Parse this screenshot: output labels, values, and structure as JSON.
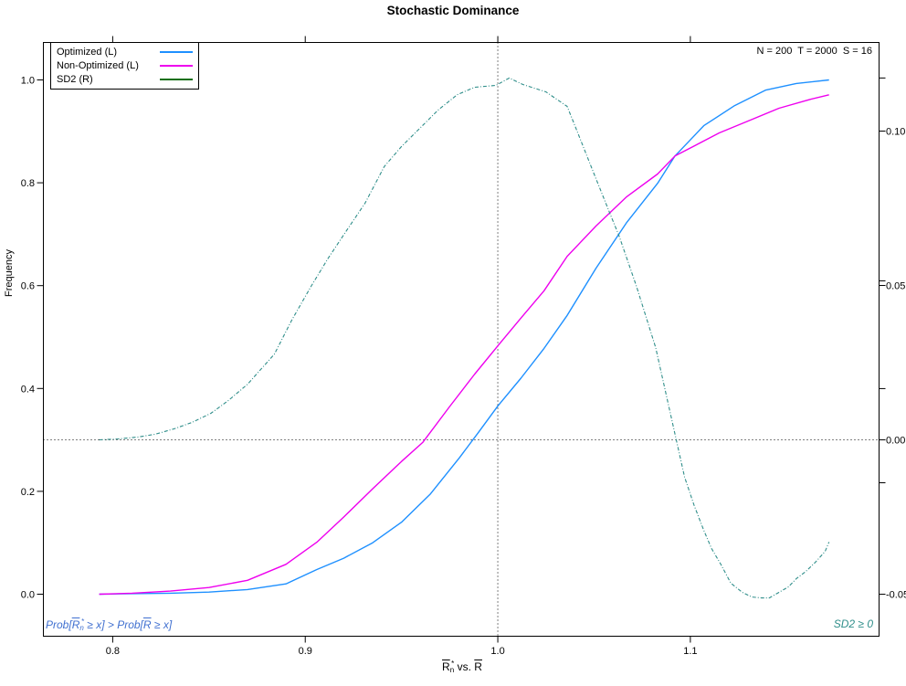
{
  "title": "Stochastic Dominance",
  "params_note": "N = 200  T = 2000  S = 16",
  "legend": {
    "items": [
      {
        "label": "Optimized (L)",
        "color": "#1e90ff"
      },
      {
        "label": "Non-Optimized (L)",
        "color": "#ee00ee"
      },
      {
        "label": "SD2 (R)",
        "color": "#0e6f0e"
      }
    ]
  },
  "axes": {
    "x": {
      "tick_values": [
        0.8,
        0.9,
        1.0,
        1.1
      ],
      "tick_labels": [
        "0.8",
        "0.9",
        "1.0",
        "1.1"
      ],
      "title_parts": [
        {
          "t": "R",
          "style": "ov"
        },
        {
          "t": "n",
          "style": "sb"
        },
        {
          "t": "*",
          "style": "sp"
        },
        {
          "t": " vs. "
        },
        {
          "t": "R",
          "style": "ov"
        }
      ]
    },
    "left": {
      "title": "Frequency",
      "tick_values": [
        0.0,
        0.2,
        0.4,
        0.6,
        0.8,
        1.0
      ],
      "tick_labels": [
        "0.0",
        "0.2",
        "0.4",
        "0.6",
        "0.8",
        "1.0"
      ]
    },
    "right": {
      "major_ticks": [
        {
          "value": 0.1,
          "label": "0.10"
        },
        {
          "value": 0.05,
          "label": "0.05"
        },
        {
          "value": 0.0,
          "label": "0.00"
        },
        {
          "value": -0.05,
          "label": "-0.05"
        }
      ],
      "minor_tick_values": [
        0.1172,
        0.0515,
        0.0166,
        -0.0139
      ]
    }
  },
  "annotations": {
    "bottom_left_parts": [
      {
        "t": "Prob["
      },
      {
        "t": "R",
        "style": "ov"
      },
      {
        "t": "n",
        "style": "sb"
      },
      {
        "t": "*",
        "style": "sp"
      },
      {
        "t": " ≥ x] > Prob["
      },
      {
        "t": "R",
        "style": "ov"
      },
      {
        "t": " ≥ x]"
      }
    ],
    "bottom_right": "SD2 ≥ 0"
  },
  "chart_data": {
    "type": "line",
    "title": "Stochastic Dominance",
    "xlabel": "R̄ₙ* vs. R̄",
    "ylabel_left": "Frequency",
    "x_range": [
      0.764,
      1.198
    ],
    "left_axis_range": [
      -0.0817,
      1.0728
    ],
    "right_axis_range": [
      -0.0636,
      0.1287
    ],
    "grid": false,
    "legend_position": "top-left",
    "reference_lines": [
      {
        "orientation": "vertical",
        "axis": "x",
        "value": 1.0,
        "style": "dotted"
      },
      {
        "orientation": "horizontal",
        "axis": "right",
        "value": 0.0,
        "style": "dotted"
      }
    ],
    "series": [
      {
        "name": "Optimized (L)",
        "axis": "left",
        "color": "#1e90ff",
        "width": 1.4,
        "dash": "",
        "points": [
          [
            0.793,
            0.0
          ],
          [
            0.81,
            0.001
          ],
          [
            0.83,
            0.002
          ],
          [
            0.85,
            0.004
          ],
          [
            0.87,
            0.009
          ],
          [
            0.89,
            0.02
          ],
          [
            0.906,
            0.048
          ],
          [
            0.92,
            0.07
          ],
          [
            0.935,
            0.1
          ],
          [
            0.95,
            0.14
          ],
          [
            0.965,
            0.195
          ],
          [
            0.98,
            0.265
          ],
          [
            0.99,
            0.315
          ],
          [
            1.0,
            0.366
          ],
          [
            1.012,
            0.42
          ],
          [
            1.024,
            0.478
          ],
          [
            1.036,
            0.542
          ],
          [
            1.051,
            0.634
          ],
          [
            1.067,
            0.723
          ],
          [
            1.083,
            0.799
          ],
          [
            1.092,
            0.852
          ],
          [
            1.107,
            0.911
          ],
          [
            1.123,
            0.95
          ],
          [
            1.139,
            0.98
          ],
          [
            1.155,
            0.993
          ],
          [
            1.172,
            1.0
          ]
        ]
      },
      {
        "name": "Non-Optimized (L)",
        "axis": "left",
        "color": "#ee00ee",
        "width": 1.4,
        "dash": "",
        "points": [
          [
            0.793,
            0.0
          ],
          [
            0.81,
            0.002
          ],
          [
            0.83,
            0.006
          ],
          [
            0.85,
            0.013
          ],
          [
            0.87,
            0.027
          ],
          [
            0.89,
            0.058
          ],
          [
            0.906,
            0.101
          ],
          [
            0.92,
            0.15
          ],
          [
            0.935,
            0.205
          ],
          [
            0.95,
            0.258
          ],
          [
            0.961,
            0.295
          ],
          [
            0.975,
            0.365
          ],
          [
            0.988,
            0.428
          ],
          [
            1.0,
            0.483
          ],
          [
            1.012,
            0.537
          ],
          [
            1.024,
            0.59
          ],
          [
            1.036,
            0.657
          ],
          [
            1.051,
            0.716
          ],
          [
            1.067,
            0.773
          ],
          [
            1.083,
            0.817
          ],
          [
            1.092,
            0.852
          ],
          [
            1.115,
            0.897
          ],
          [
            1.13,
            0.92
          ],
          [
            1.146,
            0.945
          ],
          [
            1.162,
            0.962
          ],
          [
            1.172,
            0.971
          ]
        ]
      },
      {
        "name": "SD2 (R)",
        "axis": "right",
        "color": "#2f8e8a",
        "width": 1.1,
        "dash": "4 2 1 2",
        "points": [
          [
            0.793,
            0.0
          ],
          [
            0.803,
            0.0003
          ],
          [
            0.813,
            0.0009
          ],
          [
            0.822,
            0.0018
          ],
          [
            0.832,
            0.0036
          ],
          [
            0.841,
            0.0056
          ],
          [
            0.851,
            0.0086
          ],
          [
            0.86,
            0.0127
          ],
          [
            0.87,
            0.018
          ],
          [
            0.884,
            0.0278
          ],
          [
            0.893,
            0.0388
          ],
          [
            0.903,
            0.0497
          ],
          [
            0.912,
            0.0589
          ],
          [
            0.922,
            0.0683
          ],
          [
            0.931,
            0.0766
          ],
          [
            0.941,
            0.0885
          ],
          [
            0.95,
            0.095
          ],
          [
            0.969,
            0.1068
          ],
          [
            0.979,
            0.1118
          ],
          [
            0.988,
            0.1142
          ],
          [
            0.999,
            0.1148
          ],
          [
            1.006,
            0.1172
          ],
          [
            1.013,
            0.1151
          ],
          [
            1.025,
            0.1127
          ],
          [
            1.036,
            0.108
          ],
          [
            1.04,
            0.1018
          ],
          [
            1.05,
            0.0861
          ],
          [
            1.058,
            0.0737
          ],
          [
            1.063,
            0.066
          ],
          [
            1.072,
            0.0497
          ],
          [
            1.082,
            0.0299
          ],
          [
            1.097,
            -0.0121
          ],
          [
            1.102,
            -0.0213
          ],
          [
            1.107,
            -0.0293
          ],
          [
            1.111,
            -0.0352
          ],
          [
            1.116,
            -0.0405
          ],
          [
            1.121,
            -0.0464
          ],
          [
            1.127,
            -0.0494
          ],
          [
            1.132,
            -0.0509
          ],
          [
            1.137,
            -0.0512
          ],
          [
            1.141,
            -0.0512
          ],
          [
            1.146,
            -0.0494
          ],
          [
            1.151,
            -0.0476
          ],
          [
            1.155,
            -0.045
          ],
          [
            1.16,
            -0.0426
          ],
          [
            1.165,
            -0.0396
          ],
          [
            1.17,
            -0.0361
          ],
          [
            1.172,
            -0.0331
          ]
        ]
      }
    ]
  }
}
